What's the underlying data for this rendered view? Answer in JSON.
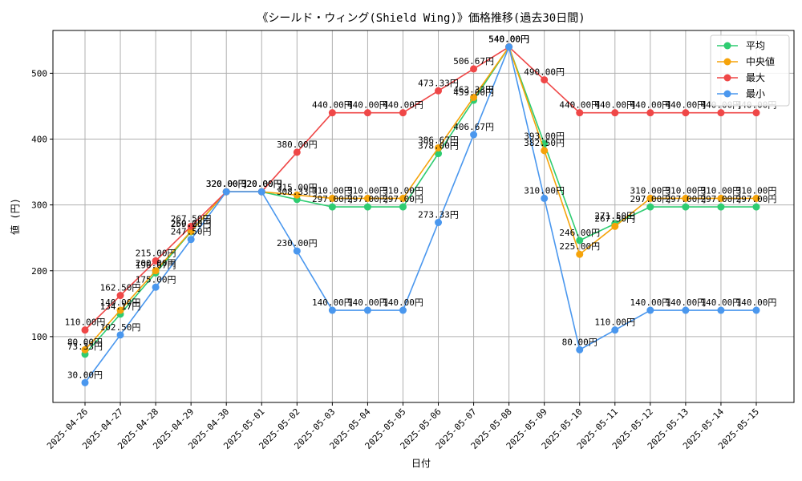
{
  "chart_data": {
    "type": "line",
    "title": "《シールド・ウィング(Shield Wing)》価格推移(過去30日間)",
    "xlabel": "日付",
    "ylabel": "値 (円)",
    "ylim": [
      0,
      565
    ],
    "yticks": [
      100,
      200,
      300,
      400,
      500
    ],
    "grid": true,
    "legend_position": "top-right",
    "value_suffix": "円",
    "categories": [
      "2025-04-26",
      "2025-04-27",
      "2025-04-28",
      "2025-04-29",
      "2025-04-30",
      "2025-05-01",
      "2025-05-02",
      "2025-05-03",
      "2025-05-04",
      "2025-05-05",
      "2025-05-06",
      "2025-05-07",
      "2025-05-08",
      "2025-05-09",
      "2025-05-10",
      "2025-05-11",
      "2025-05-12",
      "2025-05-13",
      "2025-05-14",
      "2025-05-15"
    ],
    "series": [
      {
        "name": "平均",
        "color": "#2ecc71",
        "values": [
          73.33,
          134.17,
          196.67,
          259.25,
          320.0,
          320.0,
          308.33,
          297.0,
          297.0,
          297.0,
          378.0,
          459.0,
          540.0,
          393.0,
          246.0,
          271.5,
          297.0,
          297.0,
          297.0,
          297.0
        ]
      },
      {
        "name": "中央値",
        "color": "#f5a30a",
        "values": [
          80.0,
          140.0,
          200.0,
          260.0,
          320.0,
          320.0,
          315.0,
          310.0,
          310.0,
          310.0,
          386.67,
          463.33,
          540.0,
          382.5,
          225.0,
          267.5,
          310.0,
          310.0,
          310.0,
          310.0
        ]
      },
      {
        "name": "最大",
        "color": "#ef4747",
        "values": [
          110.0,
          162.5,
          215.0,
          267.5,
          320.0,
          320.0,
          380.0,
          440.0,
          440.0,
          440.0,
          473.33,
          506.67,
          540.0,
          490.0,
          440.0,
          440.0,
          440.0,
          440.0,
          440.0,
          440.0
        ]
      },
      {
        "name": "最小",
        "color": "#4a97ee",
        "values": [
          30.0,
          102.5,
          175.0,
          247.5,
          320.0,
          320.0,
          230.0,
          140.0,
          140.0,
          140.0,
          273.33,
          406.67,
          540.0,
          310.0,
          80.0,
          110.0,
          140.0,
          140.0,
          140.0,
          140.0
        ]
      }
    ]
  }
}
